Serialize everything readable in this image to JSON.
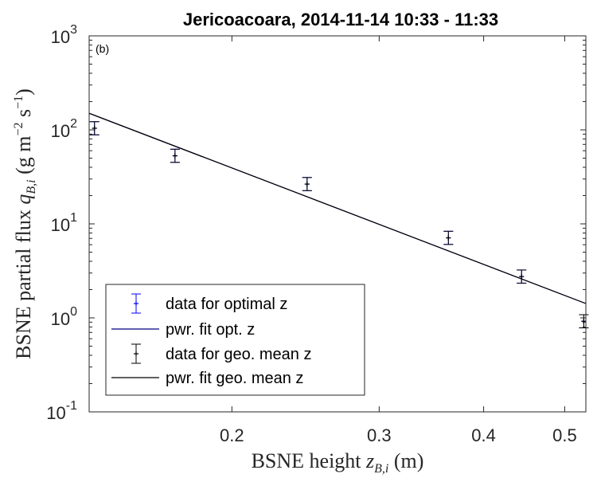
{
  "chart_data": {
    "type": "scatter",
    "title": "Jericoacoara, 2014-11-14 10:33 - 11:33",
    "panel_label": "(b)",
    "xlabel": "BSNE height z_{B,i} (m)",
    "ylabel": "BSNE partial flux q_{B,i} (g m^{-2} s^{-1})",
    "xscale": "log",
    "yscale": "log",
    "xlim": [
      0.135,
      0.53
    ],
    "ylim": [
      0.1,
      1000
    ],
    "x_ticks": [
      0.2,
      0.3,
      0.4,
      0.5
    ],
    "x_tick_labels": [
      "0.2",
      "0.3",
      "0.4",
      "0.5"
    ],
    "y_ticks": [
      0.1,
      1,
      10,
      100,
      1000
    ],
    "y_tick_labels": [
      [
        "10",
        "-1"
      ],
      [
        "10",
        "0"
      ],
      [
        "10",
        "1"
      ],
      [
        "10",
        "2"
      ],
      [
        "10",
        "3"
      ]
    ],
    "grid": false,
    "legend_position": "bottom-left",
    "series": [
      {
        "name": "data for optimal z",
        "kind": "errorbar",
        "color": "#0000ff",
        "x": [
          0.137,
          0.171,
          0.246,
          0.363,
          0.444,
          0.527
        ],
        "y": [
          104,
          53,
          26.5,
          7.1,
          2.75,
          0.92
        ],
        "err": [
          0.14,
          0.14,
          0.14,
          0.14,
          0.14,
          0.14
        ]
      },
      {
        "name": "pwr. fit opt. z",
        "kind": "fit",
        "color": "#00007f",
        "x": [
          0.135,
          0.53
        ],
        "y": [
          150,
          1.42
        ]
      },
      {
        "name": "data for geo. mean z",
        "kind": "errorbar",
        "color": "#000000",
        "x": [
          0.137,
          0.171,
          0.246,
          0.363,
          0.444,
          0.527
        ],
        "y": [
          104,
          53,
          26.5,
          7.1,
          2.75,
          0.92
        ],
        "err": [
          0.14,
          0.14,
          0.14,
          0.14,
          0.14,
          0.14
        ]
      },
      {
        "name": "pwr. fit geo. mean z",
        "kind": "fit",
        "color": "#000000",
        "x": [
          0.135,
          0.53
        ],
        "y": [
          150,
          1.42
        ]
      }
    ]
  }
}
